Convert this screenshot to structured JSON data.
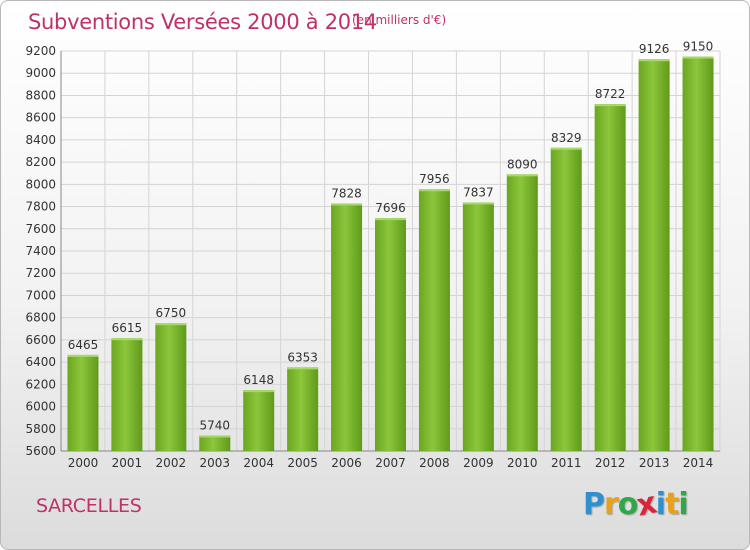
{
  "header": {
    "title": "Subventions Versées 2000 à 2014",
    "subtitle": "(en milliers d'€)"
  },
  "footer": {
    "commune": "SARCELLES",
    "logo_letters": [
      {
        "ch": "P",
        "color": "#2f8fd0"
      },
      {
        "ch": "r",
        "color": "#e8a21a"
      },
      {
        "ch": "o",
        "color": "#2fa84a"
      },
      {
        "ch": "x",
        "color": "#d9243a"
      },
      {
        "ch": "i",
        "color": "#2f8fd0"
      },
      {
        "ch": "t",
        "color": "#e8a21a"
      },
      {
        "ch": "i",
        "color": "#2fa84a"
      }
    ]
  },
  "chart_data": {
    "type": "bar",
    "title": "Subventions Versées 2000 à 2014",
    "subtitle": "(en milliers d'€)",
    "categories": [
      "2000",
      "2001",
      "2002",
      "2003",
      "2004",
      "2005",
      "2006",
      "2007",
      "2008",
      "2009",
      "2010",
      "2011",
      "2012",
      "2013",
      "2014"
    ],
    "values": [
      6465,
      6615,
      6750,
      5740,
      6148,
      6353,
      7828,
      7696,
      7956,
      7837,
      8090,
      8329,
      8722,
      9126,
      9150
    ],
    "ylim": [
      5600,
      9200
    ],
    "yticks": [
      5600,
      5800,
      6000,
      6200,
      6400,
      6600,
      6800,
      7000,
      7200,
      7400,
      7600,
      7800,
      8000,
      8200,
      8400,
      8600,
      8800,
      9000,
      9200
    ],
    "grid": true,
    "bar_color": "#7cb82f",
    "bar_color_dark": "#5f9a1a"
  }
}
